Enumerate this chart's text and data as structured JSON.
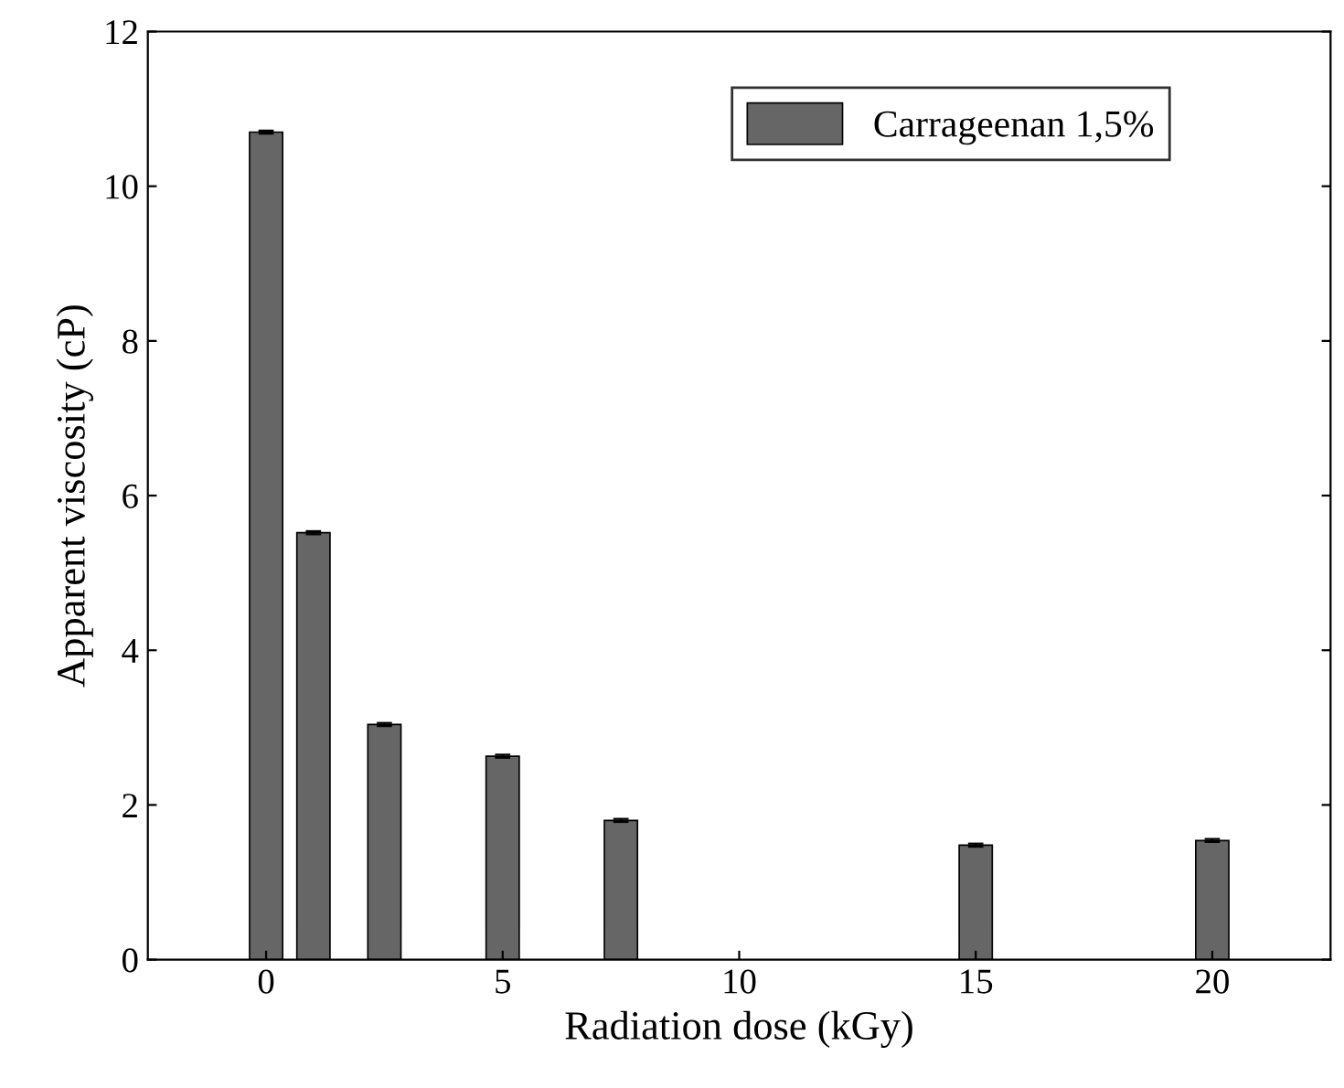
{
  "chart_data": {
    "type": "bar",
    "xlabel": "Radiation dose (kGy)",
    "ylabel": "Apparent viscosity (cP)",
    "x": [
      0,
      1,
      2.5,
      5,
      7.5,
      15,
      20
    ],
    "series": [
      {
        "name": "Carrageenan 1,5%",
        "color": "#666666",
        "values": [
          10.7,
          5.52,
          3.04,
          2.63,
          1.8,
          1.48,
          1.54
        ],
        "errors": [
          0.02,
          0.02,
          0.02,
          0.02,
          0.02,
          0.02,
          0.02
        ]
      }
    ],
    "xlim": [
      -2.5,
      22.5
    ],
    "ylim": [
      0,
      12
    ],
    "xticks": [
      0,
      5,
      10,
      15,
      20
    ],
    "yticks": [
      0,
      2,
      4,
      6,
      8,
      10,
      12
    ],
    "grid": false,
    "legend": "top right"
  }
}
